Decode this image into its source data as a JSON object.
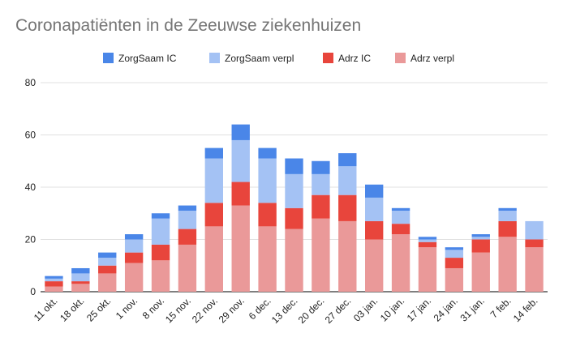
{
  "chart_data": {
    "type": "bar",
    "stacked": true,
    "title": "Coronapatiënten in de Zeeuwse ziekenhuizen",
    "xlabel": "",
    "ylabel": "",
    "ylim": [
      0,
      80
    ],
    "yticks": [
      0,
      20,
      40,
      60,
      80
    ],
    "grid": true,
    "legend_position": "top",
    "categories": [
      "11 okt.",
      "18 okt.",
      "25 okt.",
      "1 nov.",
      "8 nov.",
      "15 nov.",
      "22 nov.",
      "29 nov.",
      "6 dec.",
      "13 dec.",
      "20 dec.",
      "27 dec.",
      "03 jan.",
      "10 jan.",
      "17 jan.",
      "24 jan.",
      "31 jan.",
      "7 feb.",
      "14 feb."
    ],
    "series": [
      {
        "name": "Adrz verpl",
        "color": "#ea9999",
        "values": [
          2,
          3,
          7,
          11,
          12,
          18,
          25,
          33,
          25,
          24,
          28,
          27,
          20,
          22,
          17,
          9,
          15,
          21,
          17
        ]
      },
      {
        "name": "Adrz IC",
        "color": "#e8453c",
        "values": [
          2,
          1,
          3,
          4,
          6,
          6,
          9,
          9,
          9,
          8,
          9,
          10,
          7,
          4,
          2,
          4,
          5,
          6,
          3
        ]
      },
      {
        "name": "ZorgSaam verpl",
        "color": "#a4c2f4",
        "values": [
          1,
          3,
          3,
          5,
          10,
          7,
          17,
          16,
          17,
          13,
          8,
          11,
          9,
          5,
          1,
          3,
          1,
          4,
          7
        ]
      },
      {
        "name": "ZorgSaam IC",
        "color": "#4a86e8",
        "values": [
          1,
          2,
          2,
          2,
          2,
          2,
          4,
          6,
          4,
          6,
          5,
          5,
          5,
          1,
          1,
          1,
          1,
          1,
          0
        ]
      }
    ],
    "legend_order": [
      "ZorgSaam IC",
      "ZorgSaam verpl",
      "Adrz IC",
      "Adrz verpl"
    ]
  }
}
